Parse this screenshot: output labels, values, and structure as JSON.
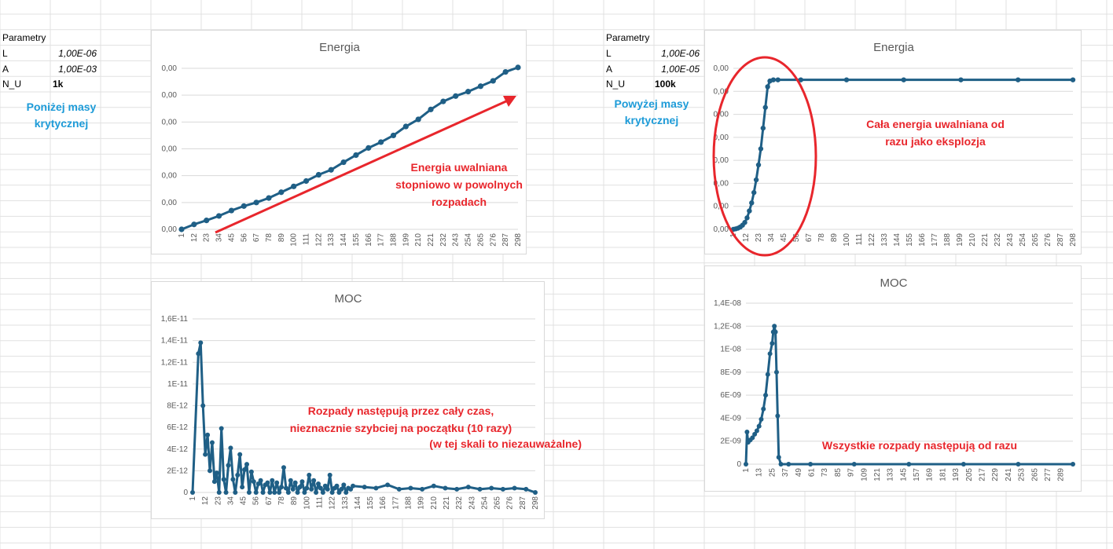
{
  "left_params": {
    "header": "Parametry",
    "rows": [
      {
        "name": "L",
        "value": "1,00E-06"
      },
      {
        "name": "A",
        "value": "1,00E-03"
      },
      {
        "name": "N_U",
        "value": "1k"
      }
    ],
    "note_line1": "Poniżej masy",
    "note_line2": "krytycznej"
  },
  "right_params": {
    "header": "Parametry",
    "rows": [
      {
        "name": "L",
        "value": "1,00E-06"
      },
      {
        "name": "A",
        "value": "1,00E-05"
      },
      {
        "name": "N_U",
        "value": "100k"
      }
    ],
    "note_line1": "Powyżej masy",
    "note_line2": "krytycznej"
  },
  "annotations": {
    "left_energy": [
      "Energia uwalniana",
      "stopniowo w powolnych",
      "rozpadach"
    ],
    "left_power": [
      "Rozpady następują przez cały czas,",
      "nieznacznie szybciej na początku (10 razy)",
      "(w tej skali to niezauważalne)"
    ],
    "right_energy": [
      "Cała energia uwalniana od",
      "razu jako eksplozja"
    ],
    "right_power": [
      "Wszystkie rozpady następują od razu"
    ]
  },
  "colors": {
    "series": "#1f5f86",
    "annotation": "#e8262c",
    "note": "#1d9bd8",
    "gridline": "#d9d9d9"
  },
  "chart_data": [
    {
      "id": "left-energy",
      "type": "line",
      "title": "Energia",
      "y_tick_labels": [
        "0,00",
        "0,00",
        "0,00",
        "0,00",
        "0,00",
        "0,00",
        "0,00"
      ],
      "x_tick_labels": [
        "1",
        "12",
        "23",
        "34",
        "45",
        "56",
        "67",
        "78",
        "89",
        "100",
        "111",
        "122",
        "133",
        "144",
        "155",
        "166",
        "177",
        "188",
        "199",
        "210",
        "221",
        "232",
        "243",
        "254",
        "265",
        "276",
        "287",
        "298"
      ],
      "x": [
        1,
        12,
        23,
        34,
        45,
        56,
        67,
        78,
        89,
        100,
        111,
        122,
        133,
        144,
        155,
        166,
        177,
        188,
        199,
        210,
        221,
        232,
        243,
        254,
        265,
        276,
        287,
        298
      ],
      "y": [
        0.0,
        0.11,
        0.2,
        0.3,
        0.42,
        0.52,
        0.6,
        0.7,
        0.83,
        0.96,
        1.08,
        1.22,
        1.33,
        1.5,
        1.66,
        1.82,
        1.95,
        2.1,
        2.3,
        2.46,
        2.68,
        2.86,
        2.98,
        3.08,
        3.2,
        3.32,
        3.52,
        3.62
      ],
      "ylim": [
        0,
        3.6
      ],
      "legend": "none"
    },
    {
      "id": "left-power",
      "type": "line",
      "title": "MOC",
      "y_tick_labels": [
        "0",
        "2E-12",
        "4E-12",
        "6E-12",
        "8E-12",
        "1E-11",
        "1,2E-11",
        "1,4E-11",
        "1,6E-11"
      ],
      "y_ticks": [
        0,
        2e-12,
        4e-12,
        6e-12,
        8e-12,
        1e-11,
        1.2e-11,
        1.4e-11,
        1.6e-11
      ],
      "x_tick_labels": [
        "1",
        "12",
        "23",
        "34",
        "45",
        "56",
        "67",
        "78",
        "89",
        "100",
        "111",
        "122",
        "133",
        "144",
        "155",
        "166",
        "177",
        "188",
        "199",
        "210",
        "221",
        "232",
        "243",
        "254",
        "265",
        "276",
        "287",
        "298"
      ],
      "x": [
        1,
        6,
        8,
        10,
        12,
        14,
        16,
        18,
        20,
        22,
        24,
        26,
        28,
        30,
        32,
        34,
        36,
        38,
        40,
        42,
        44,
        46,
        48,
        50,
        52,
        54,
        56,
        58,
        60,
        62,
        64,
        66,
        68,
        70,
        72,
        74,
        76,
        78,
        80,
        82,
        84,
        86,
        88,
        90,
        92,
        94,
        96,
        98,
        100,
        102,
        104,
        106,
        108,
        110,
        112,
        114,
        116,
        118,
        120,
        122,
        124,
        126,
        128,
        130,
        132,
        134,
        136,
        138,
        140,
        150,
        160,
        170,
        180,
        190,
        200,
        210,
        220,
        230,
        240,
        250,
        260,
        270,
        280,
        290,
        298
      ],
      "y": [
        0,
        1.28e-11,
        1.38e-11,
        8e-12,
        3.5e-12,
        5.3e-12,
        2e-12,
        4.6e-12,
        1e-12,
        1.8e-12,
        0,
        5.9e-12,
        1.2e-12,
        0,
        2.5e-12,
        4.1e-12,
        1.2e-12,
        0,
        1.6e-12,
        3.5e-12,
        5e-13,
        2.1e-12,
        2.6e-12,
        0,
        1.9e-12,
        1e-12,
        0,
        8e-13,
        1.1e-12,
        0,
        7e-13,
        9e-13,
        0,
        1.1e-12,
        0,
        9e-13,
        0,
        5e-13,
        2.3e-12,
        4e-13,
        0,
        1.1e-12,
        3e-13,
        9e-13,
        0,
        5e-13,
        1e-12,
        0,
        4e-13,
        1.6e-12,
        3e-13,
        1.1e-12,
        0,
        8e-13,
        4e-13,
        0,
        6e-13,
        3e-13,
        1.6e-12,
        0,
        4e-13,
        6e-13,
        0,
        3e-13,
        7e-13,
        0,
        4e-13,
        3e-13,
        6e-13,
        5e-13,
        4e-13,
        7e-13,
        3e-13,
        4e-13,
        3e-13,
        6e-13,
        4e-13,
        3e-13,
        5e-13,
        3e-13,
        4e-13,
        3e-13,
        4e-13,
        3e-13,
        0
      ],
      "ylim": [
        0,
        1.6e-11
      ],
      "legend": "none"
    },
    {
      "id": "right-energy",
      "type": "line",
      "title": "Energia",
      "y_tick_labels": [
        "0,00",
        "0,00",
        "0,00",
        "0,00",
        "0,00",
        "0,00",
        "0,00",
        "0,00"
      ],
      "x_tick_labels": [
        "1",
        "12",
        "23",
        "34",
        "45",
        "56",
        "67",
        "78",
        "89",
        "100",
        "111",
        "122",
        "133",
        "144",
        "155",
        "166",
        "177",
        "188",
        "199",
        "210",
        "221",
        "232",
        "243",
        "254",
        "265",
        "276",
        "287",
        "298"
      ],
      "x": [
        1,
        3,
        5,
        7,
        9,
        11,
        13,
        15,
        17,
        19,
        21,
        23,
        25,
        27,
        29,
        31,
        33,
        36,
        40,
        60,
        100,
        150,
        200,
        250,
        298
      ],
      "y": [
        0,
        0.02,
        0.05,
        0.1,
        0.18,
        0.3,
        0.5,
        0.8,
        1.15,
        1.6,
        2.15,
        2.8,
        3.5,
        4.4,
        5.3,
        6.2,
        6.45,
        6.5,
        6.5,
        6.5,
        6.5,
        6.5,
        6.5,
        6.5,
        6.5
      ],
      "ylim": [
        0,
        7
      ],
      "legend": "none"
    },
    {
      "id": "right-power",
      "type": "line",
      "title": "MOC",
      "y_tick_labels": [
        "0",
        "2E-09",
        "4E-09",
        "6E-09",
        "8E-09",
        "1E-08",
        "1,2E-08",
        "1,4E-08"
      ],
      "y_ticks": [
        0,
        2e-09,
        4e-09,
        6e-09,
        8e-09,
        1e-08,
        1.2e-08,
        1.4e-08
      ],
      "x_tick_labels": [
        "1",
        "13",
        "25",
        "37",
        "49",
        "61",
        "73",
        "85",
        "97",
        "109",
        "121",
        "133",
        "145",
        "157",
        "169",
        "181",
        "193",
        "205",
        "217",
        "229",
        "241",
        "253",
        "265",
        "277",
        "289"
      ],
      "x": [
        1,
        2,
        3,
        5,
        7,
        9,
        11,
        13,
        15,
        17,
        19,
        21,
        23,
        25,
        26,
        27,
        28,
        29,
        30,
        31,
        33,
        40,
        60,
        100,
        150,
        200,
        250,
        300
      ],
      "y": [
        0,
        2.8e-09,
        1.9e-09,
        2.1e-09,
        2.3e-09,
        2.6e-09,
        2.9e-09,
        3.3e-09,
        3.9e-09,
        4.8e-09,
        6e-09,
        7.8e-09,
        9.6e-09,
        1.05e-08,
        1.15e-08,
        1.2e-08,
        1.15e-08,
        8e-09,
        4.2e-09,
        6e-10,
        0,
        0,
        0,
        0,
        0,
        0,
        0,
        0
      ],
      "ylim": [
        0,
        1.4e-08
      ],
      "legend": "none"
    }
  ]
}
